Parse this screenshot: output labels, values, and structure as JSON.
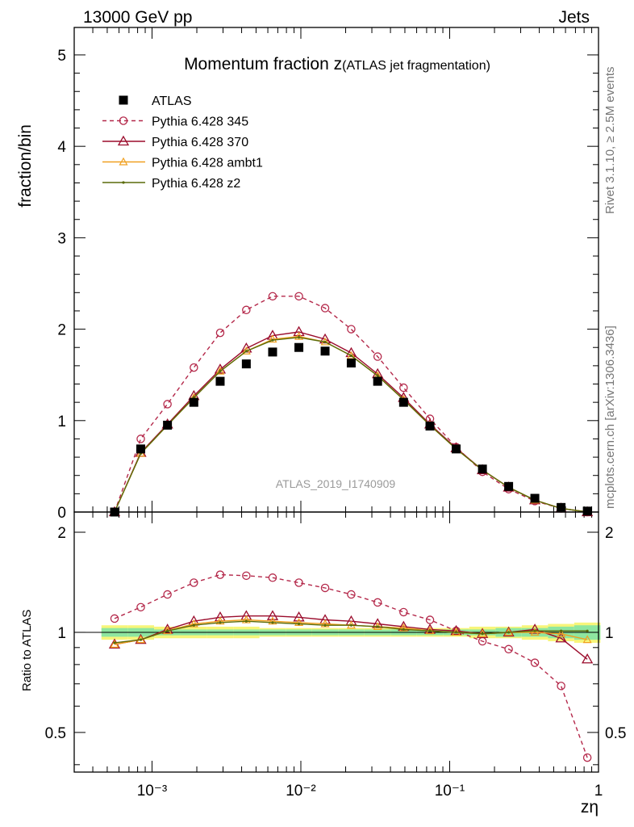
{
  "header": {
    "left": "13000 GeV pp",
    "right": "Jets"
  },
  "side": {
    "rivet": "Rivet 3.1.10, ≥ 2.5M events",
    "mcplots": "mcplots.cern.ch [arXiv:1306.3436]"
  },
  "chart_data": {
    "type": "line",
    "title": "Momentum fraction z",
    "subtitle": "(ATLAS jet fragmentation)",
    "watermark": "ATLAS_2019_I1740909",
    "xlabel": "zη",
    "ylabel": "fraction/bin",
    "ratio_ylabel": "Ratio to ATLAS",
    "x_scale": "log",
    "xlim": [
      0.0003,
      1
    ],
    "ylim": [
      0,
      5.3
    ],
    "ratio_ylim": [
      0.38,
      2.3
    ],
    "x_tick_labels": [
      "10⁻³",
      "10⁻²",
      "10⁻¹",
      "1"
    ],
    "y_tick_labels": [
      "0",
      "1",
      "2",
      "3",
      "4",
      "5"
    ],
    "ratio_tick_labels": [
      "0.5",
      "1",
      "2"
    ],
    "legend_position": "top-left",
    "x": [
      0.00056,
      0.00084,
      0.00127,
      0.00191,
      0.00287,
      0.0043,
      0.00646,
      0.0097,
      0.01455,
      0.0218,
      0.0328,
      0.049,
      0.0737,
      0.1105,
      0.166,
      0.249,
      0.3735,
      0.5605,
      0.841
    ],
    "data": {
      "name": "ATLAS",
      "values": [
        0.0,
        0.69,
        0.95,
        1.2,
        1.43,
        1.62,
        1.75,
        1.8,
        1.76,
        1.63,
        1.43,
        1.2,
        0.94,
        0.69,
        0.47,
        0.28,
        0.15,
        0.05,
        0.01
      ],
      "ratio_values": [
        0.95,
        0.96,
        1.0,
        1.0,
        1.0,
        1.0,
        1.0,
        1.0,
        1.0,
        1.0,
        1.0,
        1.0,
        1.0,
        1.0,
        1.0,
        1.0,
        1.0,
        1.0,
        1.03
      ]
    },
    "series": [
      {
        "name": "Pythia 6.428 345",
        "color": "#b4284a",
        "dash": "dashed",
        "marker": "circle",
        "values": [
          0.0,
          0.8,
          1.18,
          1.58,
          1.96,
          2.21,
          2.36,
          2.36,
          2.23,
          2.0,
          1.7,
          1.36,
          1.02,
          0.71,
          0.44,
          0.25,
          0.12,
          0.04,
          0.0
        ],
        "ratio_values": [
          1.1,
          1.19,
          1.3,
          1.41,
          1.49,
          1.48,
          1.46,
          1.41,
          1.36,
          1.3,
          1.23,
          1.15,
          1.09,
          1.01,
          0.94,
          0.89,
          0.81,
          0.69,
          0.42
        ]
      },
      {
        "name": "Pythia 6.428 370",
        "color": "#9b0c2c",
        "dash": "solid",
        "marker": "triangle",
        "values": [
          0.0,
          0.65,
          0.96,
          1.27,
          1.56,
          1.79,
          1.93,
          1.97,
          1.89,
          1.74,
          1.51,
          1.25,
          0.96,
          0.7,
          0.46,
          0.27,
          0.13,
          0.04,
          0.0
        ],
        "ratio_values": [
          0.92,
          0.95,
          1.02,
          1.08,
          1.11,
          1.12,
          1.12,
          1.11,
          1.09,
          1.08,
          1.06,
          1.04,
          1.02,
          1.01,
          0.99,
          1.0,
          1.02,
          0.96,
          0.83
        ]
      },
      {
        "name": "Pythia 6.428 ambt1",
        "color": "#f0a020",
        "dash": "solid",
        "marker": "triangle-small",
        "values": [
          0.0,
          0.64,
          0.95,
          1.25,
          1.54,
          1.76,
          1.89,
          1.92,
          1.86,
          1.71,
          1.49,
          1.23,
          0.95,
          0.69,
          0.46,
          0.27,
          0.13,
          0.04,
          0.0
        ],
        "ratio_values": [
          0.92,
          0.95,
          1.01,
          1.06,
          1.08,
          1.09,
          1.08,
          1.07,
          1.06,
          1.05,
          1.04,
          1.03,
          1.01,
          1.0,
          0.99,
          1.0,
          1.0,
          0.99,
          0.95
        ]
      },
      {
        "name": "Pythia 6.428 z2",
        "color": "#5a6b0a",
        "dash": "solid",
        "marker": "dot",
        "values": [
          0.0,
          0.64,
          0.95,
          1.25,
          1.54,
          1.76,
          1.88,
          1.91,
          1.86,
          1.71,
          1.49,
          1.23,
          0.95,
          0.69,
          0.46,
          0.27,
          0.13,
          0.04,
          0.0
        ],
        "ratio_values": [
          0.93,
          0.95,
          1.01,
          1.05,
          1.07,
          1.08,
          1.07,
          1.06,
          1.05,
          1.05,
          1.04,
          1.02,
          1.01,
          1.0,
          0.99,
          1.0,
          1.01,
          1.01,
          1.01
        ]
      }
    ]
  }
}
